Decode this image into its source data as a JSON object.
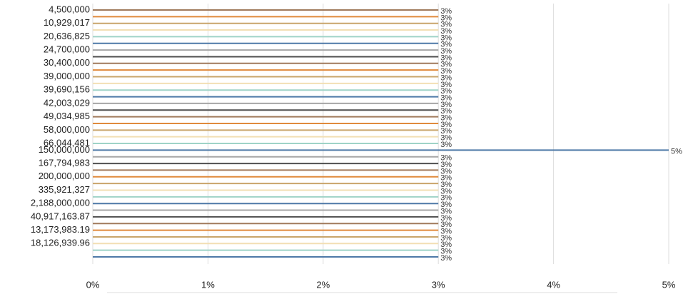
{
  "chart_data": {
    "type": "hbar",
    "categories": [
      "4,500,000",
      null,
      "10,929,017",
      null,
      "20,636,825",
      null,
      "24,700,000",
      null,
      "30,400,000",
      null,
      "39,000,000",
      null,
      "39,690,156",
      null,
      "42,003,029",
      null,
      "49,034,985",
      null,
      "58,000,000",
      null,
      "66,044,481",
      "150,000,000_gap",
      null,
      "167,794,983",
      null,
      "200,000,000",
      null,
      "335,921,327",
      null,
      "2,188,000,000",
      null,
      "40,917,163.87",
      null,
      "13,173,983.19",
      null,
      "18,126,939.96",
      null,
      null
    ],
    "values": [
      3,
      3,
      3,
      3,
      3,
      3,
      3,
      3,
      3,
      3,
      3,
      3,
      3,
      3,
      3,
      3,
      3,
      3,
      3,
      3,
      3,
      5,
      3,
      3,
      3,
      3,
      3,
      3,
      3,
      3,
      3,
      3,
      3,
      3,
      3,
      3,
      3,
      3
    ],
    "value_labels": [
      "3%",
      "3%",
      "3%",
      "3%",
      "3%",
      "3%",
      "3%",
      "3%",
      "3%",
      "3%",
      "3%",
      "3%",
      "3%",
      "3%",
      "3%",
      "3%",
      "3%",
      "3%",
      "3%",
      "3%",
      "3%",
      "5%",
      "3%",
      "3%",
      "3%",
      "3%",
      "3%",
      "3%",
      "3%",
      "3%",
      "3%",
      "3%",
      "3%",
      "3%",
      "3%",
      "3%",
      "3%",
      "3%"
    ],
    "colors": [
      "#a07a5c",
      "#e08a3c",
      "#c9a56b",
      "#f2dfb4",
      "#9fd3c7",
      "#4e79a7",
      "#a6a6a6",
      "#4f4f4f"
    ],
    "xlim": [
      0,
      5
    ],
    "xticks": [
      {
        "value": 0,
        "label": "0%"
      },
      {
        "value": 1,
        "label": "1%"
      },
      {
        "value": 2,
        "label": "2%"
      },
      {
        "value": 3,
        "label": "3%"
      },
      {
        "value": 4,
        "label": "4%"
      },
      {
        "value": 5,
        "label": "5%"
      }
    ],
    "grid": true
  }
}
